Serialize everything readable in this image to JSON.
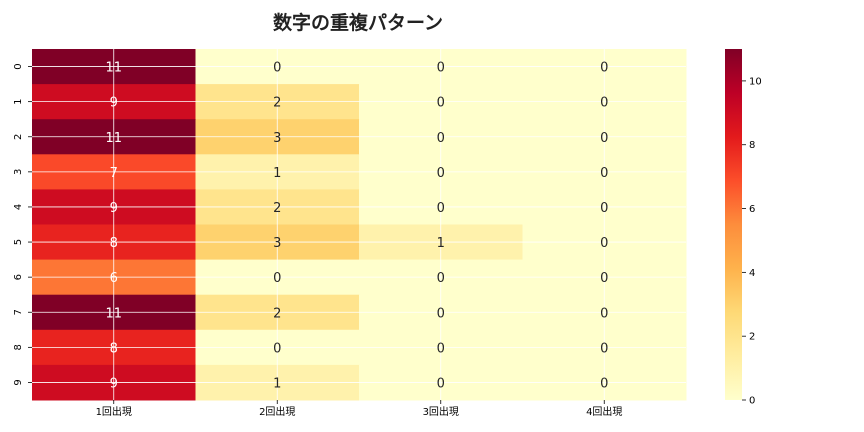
{
  "chart_data": {
    "type": "heatmap",
    "title": "数字の重複パターン",
    "x_categories": [
      "1回出現",
      "2回出現",
      "3回出現",
      "4回出現"
    ],
    "y_categories": [
      "0",
      "1",
      "2",
      "3",
      "4",
      "5",
      "6",
      "7",
      "8",
      "9"
    ],
    "values": [
      [
        11,
        0,
        0,
        0
      ],
      [
        9,
        2,
        0,
        0
      ],
      [
        11,
        3,
        0,
        0
      ],
      [
        7,
        1,
        0,
        0
      ],
      [
        9,
        2,
        0,
        0
      ],
      [
        8,
        3,
        1,
        0
      ],
      [
        6,
        0,
        0,
        0
      ],
      [
        11,
        2,
        0,
        0
      ],
      [
        8,
        0,
        0,
        0
      ],
      [
        9,
        1,
        0,
        0
      ]
    ],
    "colormap": "YlOrRd",
    "vmin": 0,
    "vmax": 11,
    "annotated": true,
    "grid": true,
    "colorbar": {
      "ticks": [
        0,
        2,
        4,
        6,
        8,
        10
      ],
      "placement": "right"
    }
  },
  "colors": {
    "ylorrd_stops": [
      "#ffffcc",
      "#ffeda0",
      "#fed976",
      "#feb24c",
      "#fd8d3c",
      "#fc4e2a",
      "#e31a1c",
      "#bd0026",
      "#800026"
    ]
  }
}
